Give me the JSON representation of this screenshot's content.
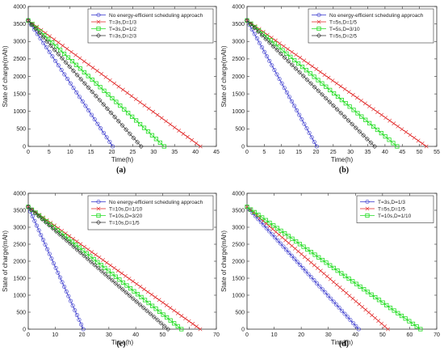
{
  "chart_data": [
    {
      "type": "line",
      "caption": "(a)",
      "xlabel": "Time(h)",
      "ylabel": "State of charge(mAh)",
      "xlim": [
        0,
        45
      ],
      "ylim": [
        0,
        4000
      ],
      "xticks": [
        0,
        5,
        10,
        15,
        20,
        25,
        30,
        35,
        40,
        45
      ],
      "yticks": [
        0,
        500,
        1000,
        1500,
        2000,
        2500,
        3000,
        3500,
        4000
      ],
      "legend": "top-right",
      "series": [
        {
          "name": "No energy-efficient scheduling approach",
          "color": "#3333cc",
          "marker": "circle",
          "x": [
            0,
            20.2
          ],
          "y": [
            3600,
            0
          ],
          "n": 28
        },
        {
          "name": "T=3s,D=1/3",
          "color": "#e02020",
          "marker": "x",
          "x": [
            0,
            41.2
          ],
          "y": [
            3600,
            0
          ],
          "n": 40
        },
        {
          "name": "T=3s,D=1/2",
          "color": "#22dd22",
          "marker": "square",
          "x": [
            0,
            32.5
          ],
          "y": [
            3600,
            0
          ],
          "n": 34
        },
        {
          "name": "T=3s,D=2/3",
          "color": "#333333",
          "marker": "diamond",
          "x": [
            0,
            27.0
          ],
          "y": [
            3600,
            0
          ],
          "n": 30
        }
      ]
    },
    {
      "type": "line",
      "caption": "(b)",
      "xlabel": "Time(h)",
      "ylabel": "State of charge(mAh)",
      "xlim": [
        0,
        55
      ],
      "ylim": [
        0,
        4000
      ],
      "xticks": [
        0,
        5,
        10,
        15,
        20,
        25,
        30,
        35,
        40,
        45,
        50,
        55
      ],
      "yticks": [
        0,
        500,
        1000,
        1500,
        2000,
        2500,
        3000,
        3500,
        4000
      ],
      "legend": "top-right",
      "series": [
        {
          "name": "No energy-efficient scheduling approach",
          "color": "#3333cc",
          "marker": "circle",
          "x": [
            0,
            20.2
          ],
          "y": [
            3600,
            0
          ],
          "n": 28
        },
        {
          "name": "T=5s,D=1/5",
          "color": "#e02020",
          "marker": "x",
          "x": [
            0,
            52.0
          ],
          "y": [
            3600,
            0
          ],
          "n": 44
        },
        {
          "name": "T=5s,D=3/10",
          "color": "#22dd22",
          "marker": "square",
          "x": [
            0,
            43.5
          ],
          "y": [
            3600,
            0
          ],
          "n": 38
        },
        {
          "name": "T=5s,D=2/5",
          "color": "#333333",
          "marker": "diamond",
          "x": [
            0,
            37.0
          ],
          "y": [
            3600,
            0
          ],
          "n": 34
        }
      ]
    },
    {
      "type": "line",
      "caption": "(c)",
      "xlabel": "Time(h)",
      "ylabel": "State of charge(mAh)",
      "xlim": [
        0,
        70
      ],
      "ylim": [
        0,
        4000
      ],
      "xticks": [
        0,
        10,
        20,
        30,
        40,
        50,
        60,
        70
      ],
      "yticks": [
        0,
        500,
        1000,
        1500,
        2000,
        2500,
        3000,
        3500,
        4000
      ],
      "legend": "top-right",
      "series": [
        {
          "name": "No energy-efficient scheduling approach",
          "color": "#3333cc",
          "marker": "circle",
          "x": [
            0,
            20.5
          ],
          "y": [
            3600,
            0
          ],
          "n": 26
        },
        {
          "name": "T=10s,D=1/10",
          "color": "#e02020",
          "marker": "x",
          "x": [
            0,
            64.0
          ],
          "y": [
            3600,
            0
          ],
          "n": 46
        },
        {
          "name": "T=10s,D=3/20",
          "color": "#22dd22",
          "marker": "square",
          "x": [
            0,
            57.0
          ],
          "y": [
            3600,
            0
          ],
          "n": 42
        },
        {
          "name": "T=10s,D=1/5",
          "color": "#333333",
          "marker": "diamond",
          "x": [
            0,
            52.0
          ],
          "y": [
            3600,
            0
          ],
          "n": 40
        }
      ]
    },
    {
      "type": "line",
      "caption": "(d)",
      "xlabel": "Time(h)",
      "ylabel": "State of charge(mAh)",
      "xlim": [
        0,
        70
      ],
      "ylim": [
        0,
        4000
      ],
      "xticks": [
        0,
        10,
        20,
        30,
        40,
        50,
        60,
        70
      ],
      "yticks": [
        0,
        500,
        1000,
        1500,
        2000,
        2500,
        3000,
        3500,
        4000
      ],
      "legend": "top-right",
      "series": [
        {
          "name": "T=3s,D=1/3",
          "color": "#3333cc",
          "marker": "circle",
          "x": [
            0,
            41.2
          ],
          "y": [
            3600,
            0
          ],
          "n": 40
        },
        {
          "name": "T=5s,D=1/5",
          "color": "#e02020",
          "marker": "x",
          "x": [
            0,
            52.0
          ],
          "y": [
            3600,
            0
          ],
          "n": 44
        },
        {
          "name": "T=10s,D=1/10",
          "color": "#22dd22",
          "marker": "square",
          "x": [
            0,
            64.0
          ],
          "y": [
            3600,
            0
          ],
          "n": 46
        }
      ]
    }
  ]
}
